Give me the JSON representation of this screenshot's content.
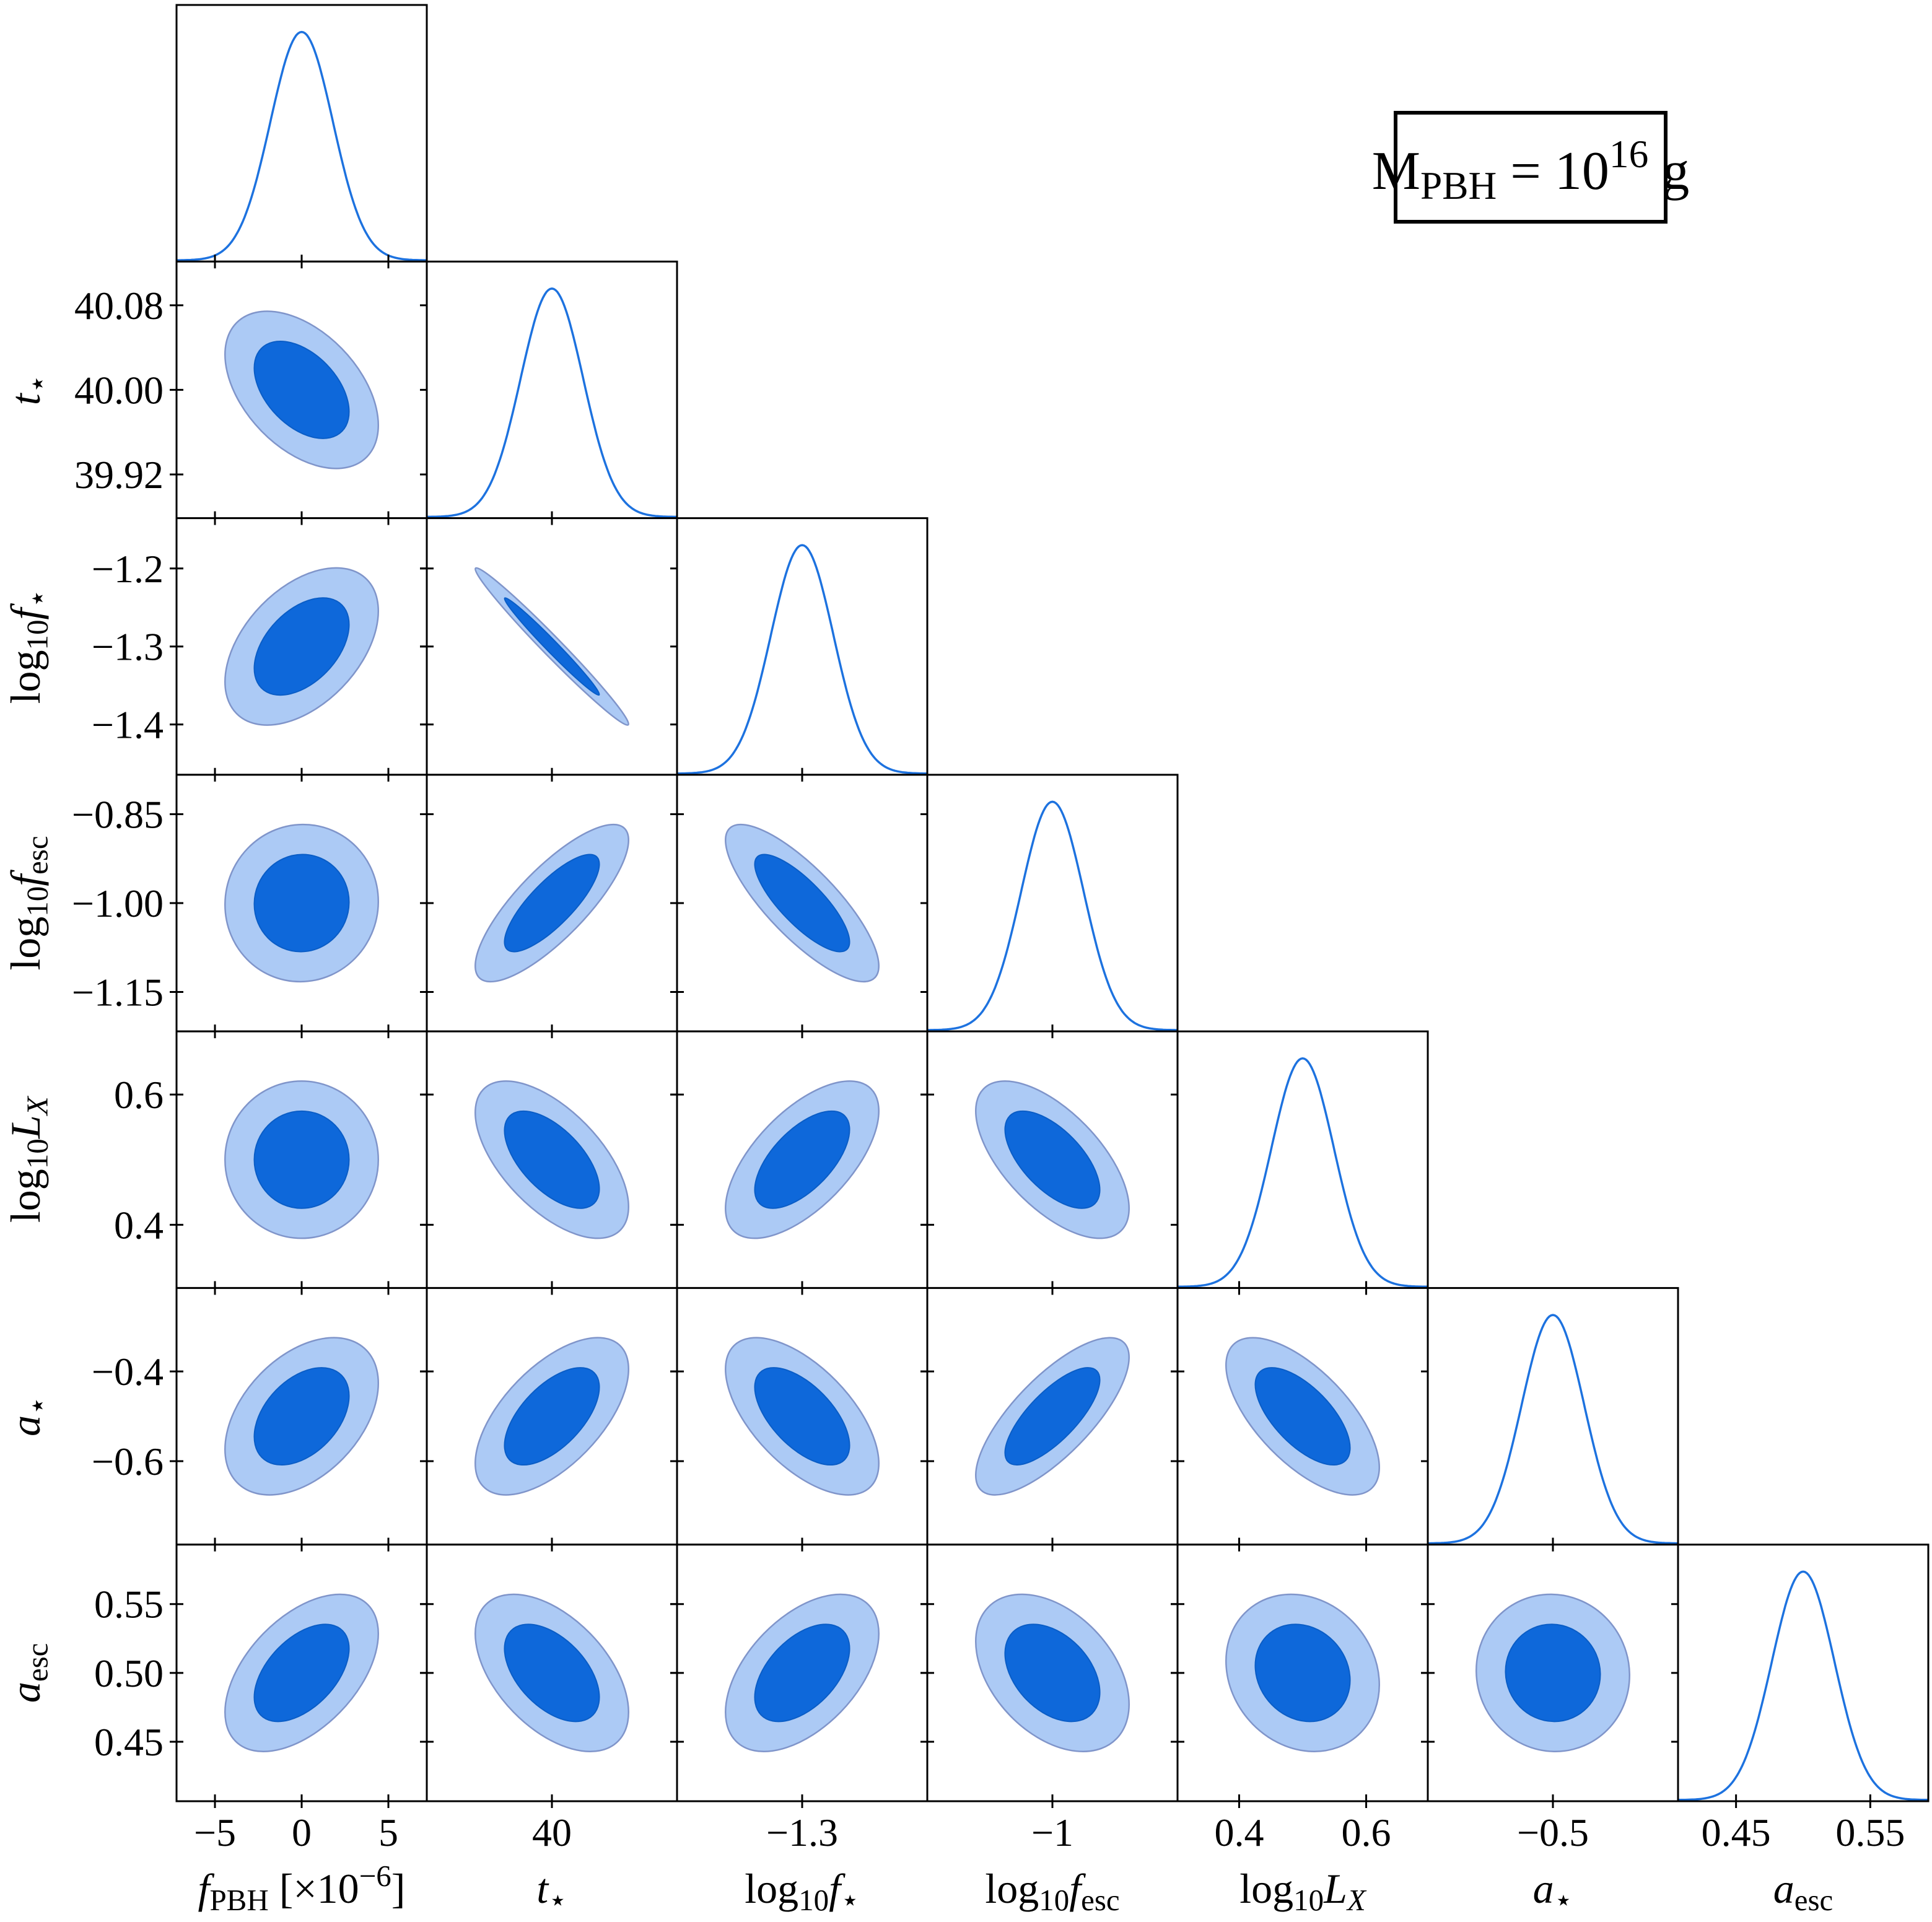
{
  "title": {
    "text": "M_PBH = 10^16 g",
    "segments": [
      {
        "t": "M"
      },
      {
        "t": "PBH",
        "sub": 1
      },
      {
        "t": " = 10"
      },
      {
        "t": "16",
        "sup": 1
      },
      {
        "t": " g"
      }
    ]
  },
  "chart_data": {
    "type": "corner_plot",
    "description": "Triangle (corner) plot of posterior constraints: 1D marginal Gaussians on the diagonal, 68% and 95% filled contour ellipses below the diagonal.",
    "contour_levels": [
      "68%",
      "95%"
    ],
    "colors": {
      "inner_contour": "#0e68da",
      "inner_edge": "#0a5dc6",
      "outer_contour": "#accaf5",
      "outer_edge": "#8095ca",
      "curve": "#1d72df",
      "frame": "#000000",
      "background": "#ffffff"
    },
    "parameters": [
      {
        "id": "f_PBH",
        "label_text": "f_PBH [×10⁻⁶]",
        "segments": [
          {
            "t": "f",
            "i": 1
          },
          {
            "t": "PBH",
            "sub": 1
          },
          {
            "t": " [×10"
          },
          {
            "t": "−6",
            "sup": 1
          },
          {
            "t": "]"
          }
        ],
        "mean": 0,
        "sigma": 1.8,
        "range": [
          -7.215,
          7.215
        ],
        "x_ticks": [
          -5,
          0,
          5
        ],
        "x_tick_labels": [
          "−5",
          "0",
          "5"
        ],
        "y_ticks": null,
        "y_tick_labels": null
      },
      {
        "id": "t_star",
        "label_text": "t_⋆",
        "segments": [
          {
            "t": "t",
            "i": 1
          },
          {
            "t": "⋆",
            "sub": 1
          }
        ],
        "mean": 40.0,
        "sigma": 0.0303,
        "range": [
          39.8787,
          40.1213
        ],
        "x_ticks": [
          40
        ],
        "x_tick_labels": [
          "40"
        ],
        "y_ticks": [
          40.08,
          40.0,
          39.92
        ],
        "y_tick_labels": [
          "40.08",
          "40.00",
          "39.92"
        ]
      },
      {
        "id": "log10_f_star",
        "label_text": "log10 f_⋆",
        "segments": [
          {
            "t": "log"
          },
          {
            "t": "10",
            "sub": 1
          },
          {
            "t": "f",
            "i": 1
          },
          {
            "t": "⋆",
            "sub": 1
          }
        ],
        "mean": -1.3,
        "sigma": 0.0411,
        "range": [
          -1.4645,
          -1.1355
        ],
        "x_ticks": [
          -1.3
        ],
        "x_tick_labels": [
          "−1.3"
        ],
        "y_ticks": [
          -1.2,
          -1.3,
          -1.4
        ],
        "y_tick_labels": [
          "−1.2",
          "−1.3",
          "−1.4"
        ]
      },
      {
        "id": "log10_f_esc",
        "label_text": "log10 f_esc",
        "segments": [
          {
            "t": "log"
          },
          {
            "t": "10",
            "sub": 1
          },
          {
            "t": "f",
            "i": 1
          },
          {
            "t": "esc",
            "sub": 1
          }
        ],
        "mean": -1.0,
        "sigma": 0.0541,
        "range": [
          -1.2165,
          -0.7835
        ],
        "x_ticks": [
          -1
        ],
        "x_tick_labels": [
          "−1"
        ],
        "y_ticks": [
          -0.85,
          -1.0,
          -1.15
        ],
        "y_tick_labels": [
          "−0.85",
          "−1.00",
          "−1.15"
        ]
      },
      {
        "id": "log10_LX",
        "label_text": "log10 L_X",
        "segments": [
          {
            "t": "log"
          },
          {
            "t": "10",
            "sub": 1
          },
          {
            "t": "L",
            "i": 1
          },
          {
            "t": "X",
            "i": 1,
            "sub": 1
          }
        ],
        "mean": 0.5,
        "sigma": 0.0493,
        "range": [
          0.303,
          0.697
        ],
        "x_ticks": [
          0.4,
          0.6
        ],
        "x_tick_labels": [
          "0.4",
          "0.6"
        ],
        "y_ticks": [
          0.6,
          0.4
        ],
        "y_tick_labels": [
          "0.6",
          "0.4"
        ]
      },
      {
        "id": "a_star",
        "label_text": "a_⋆",
        "segments": [
          {
            "t": "a",
            "i": 1
          },
          {
            "t": "⋆",
            "sub": 1
          }
        ],
        "mean": -0.5,
        "sigma": 0.0715,
        "range": [
          -0.786,
          -0.214
        ],
        "x_ticks": [
          -0.5
        ],
        "x_tick_labels": [
          "−0.5"
        ],
        "y_ticks": [
          -0.4,
          -0.6
        ],
        "y_tick_labels": [
          "−0.4",
          "−0.6"
        ]
      },
      {
        "id": "a_esc",
        "label_text": "a_esc",
        "segments": [
          {
            "t": "a",
            "i": 1
          },
          {
            "t": "esc",
            "sub": 1
          }
        ],
        "mean": 0.5,
        "sigma": 0.0233,
        "range": [
          0.4068,
          0.5932
        ],
        "x_ticks": [
          0.45,
          0.55
        ],
        "x_tick_labels": [
          "0.45",
          "0.55"
        ],
        "y_ticks": [
          0.55,
          0.5,
          0.45
        ],
        "y_tick_labels": [
          "0.55",
          "0.50",
          "0.45"
        ]
      }
    ],
    "correlations": [
      [
        1.0,
        -0.45,
        0.45,
        0.02,
        0.0,
        0.42,
        0.5
      ],
      [
        -0.45,
        1.0,
        -0.985,
        0.8,
        -0.6,
        0.6,
        -0.5
      ],
      [
        0.45,
        -0.985,
        1.0,
        -0.8,
        0.62,
        -0.6,
        0.5
      ],
      [
        0.02,
        0.8,
        -0.8,
        1.0,
        -0.62,
        0.75,
        -0.4
      ],
      [
        0.0,
        -0.6,
        0.62,
        -0.62,
        1.0,
        -0.65,
        -0.15
      ],
      [
        0.42,
        0.6,
        -0.6,
        0.75,
        -0.65,
        1.0,
        -0.03
      ],
      [
        0.5,
        -0.5,
        0.5,
        -0.4,
        -0.15,
        -0.03,
        1.0
      ]
    ]
  }
}
